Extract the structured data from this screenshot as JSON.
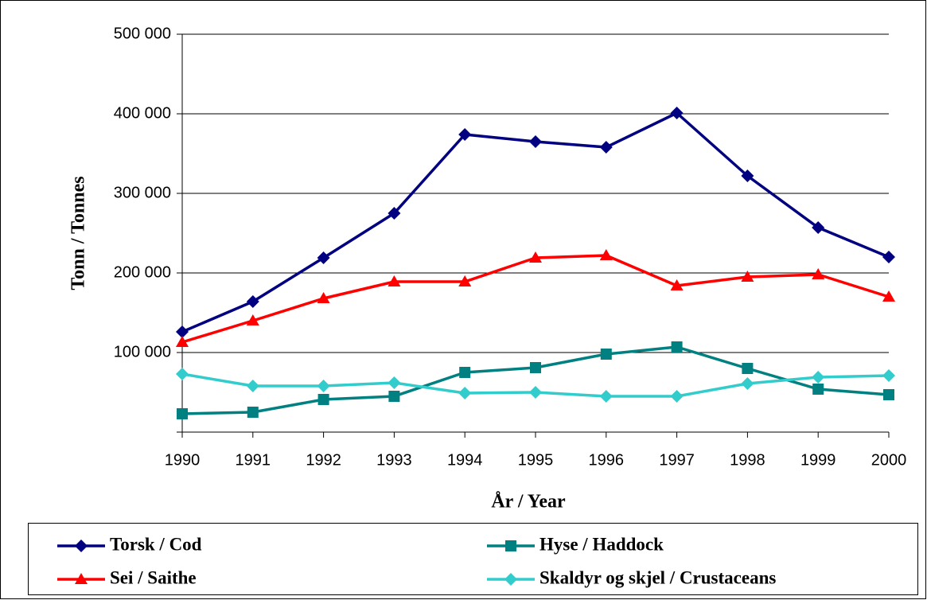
{
  "chart_data": {
    "type": "line",
    "x_label": "År / Year",
    "y_label": "Tonn / Tonnes",
    "x": [
      1990,
      1991,
      1992,
      1993,
      1994,
      1995,
      1996,
      1997,
      1998,
      1999,
      2000
    ],
    "xlim": [
      1990,
      2000
    ],
    "ylim": [
      0,
      500000
    ],
    "yticks": [
      {
        "value": 100000,
        "label": "100 000"
      },
      {
        "value": 200000,
        "label": "200 000"
      },
      {
        "value": 300000,
        "label": "300 000"
      },
      {
        "value": 400000,
        "label": "400 000"
      },
      {
        "value": 500000,
        "label": "500 000"
      }
    ],
    "grid": true,
    "legend": "bottom",
    "series": [
      {
        "name": "Torsk / Cod",
        "color": "#000080",
        "marker": "diamond",
        "values": [
          126000,
          164000,
          219000,
          275000,
          374000,
          365000,
          358000,
          401000,
          322000,
          257000,
          220000
        ]
      },
      {
        "name": "Hyse / Haddock",
        "color": "#008080",
        "marker": "square",
        "values": [
          23000,
          25000,
          41000,
          45000,
          75000,
          81000,
          98000,
          107000,
          80000,
          54000,
          47000
        ]
      },
      {
        "name": "Sei / Saithe",
        "color": "#ff0000",
        "marker": "triangle",
        "values": [
          113000,
          140000,
          168000,
          189000,
          189000,
          219000,
          222000,
          184000,
          195000,
          198000,
          170000
        ]
      },
      {
        "name": "Skaldyr og skjel / Crustaceans",
        "color": "#33cccc",
        "marker": "diamond",
        "values": [
          73000,
          58000,
          58000,
          62000,
          49000,
          50000,
          45000,
          45000,
          61000,
          69000,
          71000
        ]
      }
    ]
  }
}
